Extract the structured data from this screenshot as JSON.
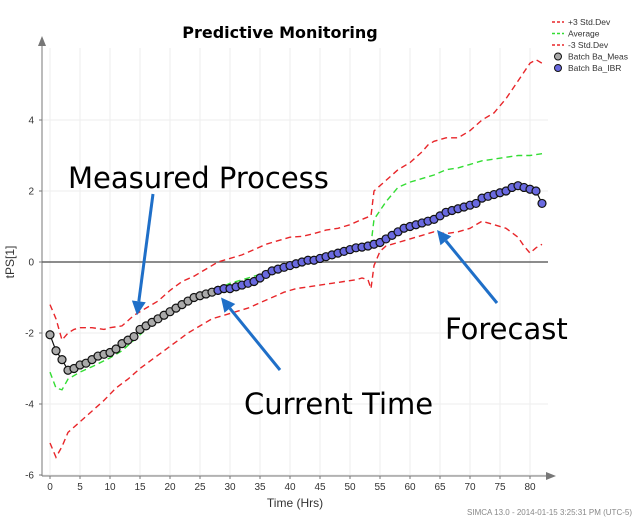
{
  "chart_data": {
    "type": "line",
    "title": "Predictive Monitoring",
    "xlabel": "Time (Hrs)",
    "ylabel": "tPS[1]",
    "xlim": [
      -1,
      82
    ],
    "ylim": [
      -6,
      6
    ],
    "x_ticks": [
      0,
      5,
      10,
      15,
      20,
      25,
      30,
      35,
      40,
      45,
      50,
      55,
      60,
      65,
      70,
      75,
      80
    ],
    "y_ticks": [
      -6,
      -4,
      -2,
      0,
      2,
      4
    ],
    "grid": true,
    "legend_position": "top-right",
    "series": [
      {
        "name": "+3 Std.Dev",
        "style": "dashed",
        "color": "#e8262a",
        "points": [
          [
            0,
            -1.2
          ],
          [
            1,
            -1.6
          ],
          [
            2,
            -2.2
          ],
          [
            3,
            -2.0
          ],
          [
            4,
            -1.9
          ],
          [
            5,
            -1.85
          ],
          [
            7,
            -1.85
          ],
          [
            9,
            -1.9
          ],
          [
            10,
            -1.85
          ],
          [
            12,
            -1.8
          ],
          [
            14,
            -1.5
          ],
          [
            16,
            -1.3
          ],
          [
            18,
            -1.1
          ],
          [
            20,
            -0.8
          ],
          [
            22,
            -0.55
          ],
          [
            24,
            -0.4
          ],
          [
            26,
            -0.2
          ],
          [
            28,
            0.0
          ],
          [
            30,
            0.1
          ],
          [
            32,
            0.2
          ],
          [
            34,
            0.35
          ],
          [
            36,
            0.5
          ],
          [
            38,
            0.6
          ],
          [
            40,
            0.7
          ],
          [
            42,
            0.72
          ],
          [
            44,
            0.8
          ],
          [
            46,
            0.9
          ],
          [
            48,
            0.95
          ],
          [
            50,
            1.05
          ],
          [
            52,
            1.2
          ],
          [
            53.5,
            1.3
          ],
          [
            54,
            2.0
          ],
          [
            56,
            2.3
          ],
          [
            58,
            2.6
          ],
          [
            60,
            2.8
          ],
          [
            62,
            3.1
          ],
          [
            63,
            3.3
          ],
          [
            64,
            3.4
          ],
          [
            66,
            3.5
          ],
          [
            68,
            3.5
          ],
          [
            70,
            3.7
          ],
          [
            72,
            4.0
          ],
          [
            74,
            4.2
          ],
          [
            76,
            4.6
          ],
          [
            78,
            5.1
          ],
          [
            80,
            5.6
          ],
          [
            81,
            5.7
          ],
          [
            82,
            5.6
          ]
        ]
      },
      {
        "name": "Average",
        "style": "dashed",
        "color": "#33dd33",
        "points": [
          [
            0,
            -3.1
          ],
          [
            1,
            -3.55
          ],
          [
            2,
            -3.6
          ],
          [
            3,
            -3.3
          ],
          [
            5,
            -3.1
          ],
          [
            7,
            -2.95
          ],
          [
            10,
            -2.7
          ],
          [
            12,
            -2.5
          ],
          [
            14,
            -2.2
          ],
          [
            16,
            -1.9
          ],
          [
            18,
            -1.6
          ],
          [
            20,
            -1.4
          ],
          [
            22,
            -1.2
          ],
          [
            24,
            -1.05
          ],
          [
            26,
            -0.9
          ],
          [
            28,
            -0.75
          ],
          [
            30,
            -0.6
          ],
          [
            32,
            -0.5
          ],
          [
            34,
            -0.4
          ],
          [
            36,
            -0.3
          ],
          [
            38,
            -0.2
          ],
          [
            40,
            -0.05
          ],
          [
            42,
            0.0
          ],
          [
            44,
            0.1
          ],
          [
            46,
            0.2
          ],
          [
            48,
            0.3
          ],
          [
            50,
            0.4
          ],
          [
            52,
            0.45
          ],
          [
            53.5,
            0.5
          ],
          [
            54,
            1.2
          ],
          [
            56,
            1.7
          ],
          [
            58,
            2.1
          ],
          [
            60,
            2.25
          ],
          [
            62,
            2.35
          ],
          [
            64,
            2.45
          ],
          [
            66,
            2.6
          ],
          [
            68,
            2.65
          ],
          [
            70,
            2.75
          ],
          [
            72,
            2.85
          ],
          [
            74,
            2.9
          ],
          [
            76,
            2.95
          ],
          [
            78,
            3.0
          ],
          [
            80,
            3.0
          ],
          [
            82,
            3.05
          ]
        ]
      },
      {
        "name": "-3 Std.Dev",
        "style": "dashed",
        "color": "#e8262a",
        "points": [
          [
            0,
            -5.1
          ],
          [
            1,
            -5.5
          ],
          [
            2,
            -5.2
          ],
          [
            3,
            -4.8
          ],
          [
            5,
            -4.5
          ],
          [
            7,
            -4.2
          ],
          [
            9,
            -3.9
          ],
          [
            11,
            -3.55
          ],
          [
            13,
            -3.3
          ],
          [
            15,
            -3.0
          ],
          [
            17,
            -2.75
          ],
          [
            19,
            -2.5
          ],
          [
            21,
            -2.25
          ],
          [
            23,
            -2.0
          ],
          [
            25,
            -1.8
          ],
          [
            27,
            -1.6
          ],
          [
            29,
            -1.5
          ],
          [
            31,
            -1.4
          ],
          [
            33,
            -1.3
          ],
          [
            35,
            -1.15
          ],
          [
            37,
            -1.0
          ],
          [
            39,
            -0.85
          ],
          [
            41,
            -0.75
          ],
          [
            43,
            -0.7
          ],
          [
            45,
            -0.65
          ],
          [
            47,
            -0.6
          ],
          [
            49,
            -0.55
          ],
          [
            51,
            -0.5
          ],
          [
            52,
            -0.45
          ],
          [
            53,
            -0.5
          ],
          [
            53.5,
            -0.75
          ],
          [
            54,
            -0.1
          ],
          [
            55,
            0.3
          ],
          [
            56,
            0.45
          ],
          [
            58,
            0.55
          ],
          [
            60,
            0.65
          ],
          [
            62,
            0.75
          ],
          [
            64,
            0.85
          ],
          [
            66,
            0.8
          ],
          [
            68,
            0.85
          ],
          [
            70,
            0.95
          ],
          [
            72,
            1.15
          ],
          [
            74,
            1.05
          ],
          [
            76,
            0.95
          ],
          [
            78,
            0.7
          ],
          [
            79,
            0.45
          ],
          [
            80,
            0.25
          ],
          [
            81,
            0.4
          ],
          [
            82,
            0.5
          ]
        ]
      },
      {
        "name": "Batch Ba_Meas",
        "style": "markers",
        "color": "#aaaaaa",
        "points": [
          [
            0,
            -2.05
          ],
          [
            1,
            -2.5
          ],
          [
            2,
            -2.75
          ],
          [
            3,
            -3.05
          ],
          [
            4,
            -3.0
          ],
          [
            5,
            -2.9
          ],
          [
            6,
            -2.85
          ],
          [
            7,
            -2.75
          ],
          [
            8,
            -2.65
          ],
          [
            9,
            -2.6
          ],
          [
            10,
            -2.55
          ],
          [
            11,
            -2.45
          ],
          [
            12,
            -2.3
          ],
          [
            13,
            -2.2
          ],
          [
            14,
            -2.1
          ],
          [
            15,
            -1.9
          ],
          [
            16,
            -1.8
          ],
          [
            17,
            -1.7
          ],
          [
            18,
            -1.6
          ],
          [
            19,
            -1.5
          ],
          [
            20,
            -1.4
          ],
          [
            21,
            -1.3
          ],
          [
            22,
            -1.2
          ],
          [
            23,
            -1.1
          ],
          [
            24,
            -1.0
          ],
          [
            25,
            -0.95
          ],
          [
            26,
            -0.9
          ],
          [
            27,
            -0.85
          ],
          [
            28,
            -0.8
          ]
        ]
      },
      {
        "name": "Batch Ba_IBR",
        "style": "markers",
        "color": "#6a6ae0",
        "points": [
          [
            28,
            -0.8
          ],
          [
            29,
            -0.75
          ],
          [
            30,
            -0.75
          ],
          [
            31,
            -0.7
          ],
          [
            32,
            -0.65
          ],
          [
            33,
            -0.6
          ],
          [
            34,
            -0.55
          ],
          [
            35,
            -0.45
          ],
          [
            36,
            -0.35
          ],
          [
            37,
            -0.25
          ],
          [
            38,
            -0.2
          ],
          [
            39,
            -0.15
          ],
          [
            40,
            -0.1
          ],
          [
            41,
            -0.05
          ],
          [
            42,
            0.0
          ],
          [
            43,
            0.05
          ],
          [
            44,
            0.05
          ],
          [
            45,
            0.1
          ],
          [
            46,
            0.15
          ],
          [
            47,
            0.2
          ],
          [
            48,
            0.25
          ],
          [
            49,
            0.3
          ],
          [
            50,
            0.35
          ],
          [
            51,
            0.4
          ],
          [
            52,
            0.42
          ],
          [
            53,
            0.45
          ],
          [
            54,
            0.5
          ],
          [
            55,
            0.55
          ],
          [
            56,
            0.65
          ],
          [
            57,
            0.75
          ],
          [
            58,
            0.85
          ],
          [
            59,
            0.95
          ],
          [
            60,
            1.0
          ],
          [
            61,
            1.05
          ],
          [
            62,
            1.1
          ],
          [
            63,
            1.15
          ],
          [
            64,
            1.2
          ],
          [
            65,
            1.3
          ],
          [
            66,
            1.4
          ],
          [
            67,
            1.45
          ],
          [
            68,
            1.5
          ],
          [
            69,
            1.55
          ],
          [
            70,
            1.6
          ],
          [
            71,
            1.65
          ],
          [
            72,
            1.8
          ],
          [
            73,
            1.85
          ],
          [
            74,
            1.9
          ],
          [
            75,
            1.95
          ],
          [
            76,
            2.0
          ],
          [
            77,
            2.1
          ],
          [
            78,
            2.15
          ],
          [
            79,
            2.1
          ],
          [
            80,
            2.05
          ],
          [
            81,
            2.0
          ],
          [
            82,
            1.65
          ]
        ]
      }
    ],
    "annotations": [
      {
        "text": "Measured Process",
        "points_to": [
          14.5,
          -1.5
        ]
      },
      {
        "text": "Current Time",
        "points_to": [
          28.5,
          -1.0
        ]
      },
      {
        "text": "Forecast",
        "points_to": [
          64.5,
          0.9
        ]
      }
    ],
    "footer": "SIMCA 13.0 - 2014-01-15 3:25:31 PM (UTC-5)"
  }
}
